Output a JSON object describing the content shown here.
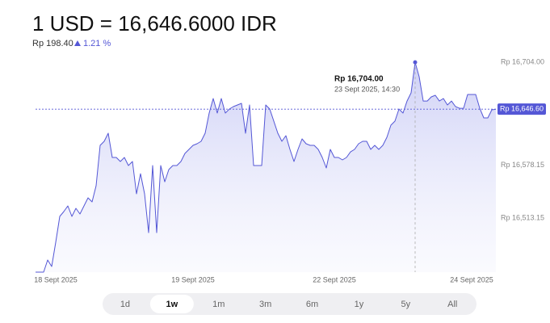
{
  "chart_data": {
    "type": "area",
    "title": "1 USD = 16,646.6000 IDR",
    "change": "Rp 198.40",
    "change_pct": "1.21 %",
    "color": "#5457d6",
    "ylim": [
      16447,
      16715
    ],
    "yticks": [
      {
        "value": 16704,
        "label": "Rp 16,704.00"
      },
      {
        "value": 16578.15,
        "label": "Rp 16,578.15"
      },
      {
        "value": 16513.15,
        "label": "Rp 16,513.15"
      }
    ],
    "current": {
      "value": 16646.6,
      "label": "Rp 16,646.60"
    },
    "highlight": {
      "value": 16704,
      "label": "Rp 16,704.00",
      "time": "23 Sept 2025, 14:30"
    },
    "xlim": [
      0,
      114
    ],
    "xticks": [
      {
        "value": 5,
        "label": "18 Sept 2025"
      },
      {
        "value": 39,
        "label": "19 Sept 2025"
      },
      {
        "value": 74,
        "label": "22 Sept 2025"
      },
      {
        "value": 108,
        "label": "24 Sept 2025"
      }
    ],
    "values": [
      16447,
      16447,
      16447,
      16461.8,
      16453.9,
      16483.6,
      16515.2,
      16521.2,
      16528.1,
      16515.2,
      16525.1,
      16518.2,
      16528.1,
      16538,
      16533,
      16552.8,
      16602.3,
      16607.2,
      16617.1,
      16587.4,
      16587.4,
      16582.5,
      16587.4,
      16577.5,
      16582.5,
      16542.9,
      16567.6,
      16542.9,
      16495.4,
      16577.5,
      16495.4,
      16577.5,
      16557.7,
      16572.6,
      16577.5,
      16577.5,
      16582.5,
      16592.4,
      16597.3,
      16602.3,
      16604.2,
      16607.2,
      16617.1,
      16641.8,
      16659.6,
      16641.8,
      16659.6,
      16641.8,
      16646.8,
      16649.7,
      16651.7,
      16653.7,
      16617.1,
      16651.7,
      16577.5,
      16577.5,
      16577.5,
      16651.7,
      16646.8,
      16631.9,
      16617.1,
      16607.2,
      16614.1,
      16597.3,
      16582.5,
      16597.3,
      16610.2,
      16604.2,
      16602.3,
      16602.3,
      16597.3,
      16587.4,
      16574.6,
      16597.3,
      16587.4,
      16587.4,
      16584.5,
      16587.4,
      16594.3,
      16597.3,
      16604.2,
      16607.2,
      16607.2,
      16597.3,
      16602.3,
      16597.3,
      16602.3,
      16612.1,
      16627,
      16631.9,
      16646.8,
      16641.8,
      16656.6,
      16666.5,
      16704,
      16686.3,
      16656.6,
      16656.6,
      16661.6,
      16663.6,
      16656.6,
      16659.6,
      16651.7,
      16656.6,
      16649.7,
      16647.7,
      16647.7,
      16664.6,
      16664.6,
      16664.6,
      16647.7,
      16635.9,
      16635.9,
      16645.8,
      16646.6
    ],
    "ranges": [
      {
        "label": "1d"
      },
      {
        "label": "1w",
        "selected": true
      },
      {
        "label": "1m"
      },
      {
        "label": "3m"
      },
      {
        "label": "6m"
      },
      {
        "label": "1y"
      },
      {
        "label": "5y"
      },
      {
        "label": "All"
      }
    ]
  }
}
